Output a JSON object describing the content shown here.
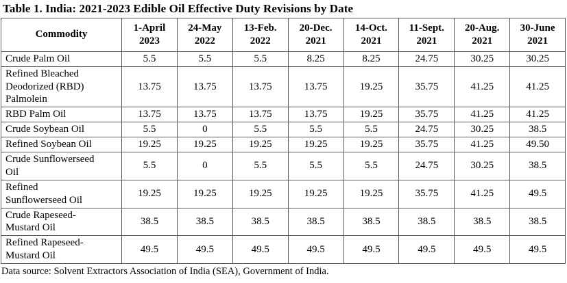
{
  "title": "Table 1. India: 2021-2023 Edible Oil Effective Duty Revisions by Date",
  "table": {
    "columns": [
      "Commodity",
      "1-April 2023",
      "24-May 2022",
      "13-Feb. 2022",
      "20-Dec. 2021",
      "14-Oct. 2021",
      "11-Sept. 2021",
      "20-Aug. 2021",
      "30-June 2021"
    ],
    "rows": [
      {
        "commodity": "Crude Palm Oil",
        "values": [
          "5.5",
          "5.5",
          "5.5",
          "8.25",
          "8.25",
          "24.75",
          "30.25",
          "30.25"
        ]
      },
      {
        "commodity": "Refined Bleached Deodorized (RBD) Palmolein",
        "values": [
          "13.75",
          "13.75",
          "13.75",
          "13.75",
          "19.25",
          "35.75",
          "41.25",
          "41.25"
        ]
      },
      {
        "commodity": "RBD Palm Oil",
        "values": [
          "13.75",
          "13.75",
          "13.75",
          "13.75",
          "19.25",
          "35.75",
          "41.25",
          "41.25"
        ]
      },
      {
        "commodity": "Crude Soybean Oil",
        "values": [
          "5.5",
          "0",
          "5.5",
          "5.5",
          "5.5",
          "24.75",
          "30.25",
          "38.5"
        ]
      },
      {
        "commodity": "Refined Soybean Oil",
        "values": [
          "19.25",
          "19.25",
          "19.25",
          "19.25",
          "19.25",
          "35.75",
          "41.25",
          "49.50"
        ]
      },
      {
        "commodity": "Crude Sunflowerseed Oil",
        "values": [
          "5.5",
          "0",
          "5.5",
          "5.5",
          "5.5",
          "24.75",
          "30.25",
          "38.5"
        ]
      },
      {
        "commodity": "Refined Sunflowerseed Oil",
        "values": [
          "19.25",
          "19.25",
          "19.25",
          "19.25",
          "19.25",
          "35.75",
          "41.25",
          "49.5"
        ]
      },
      {
        "commodity": "Crude Rapeseed-Mustard Oil",
        "values": [
          "38.5",
          "38.5",
          "38.5",
          "38.5",
          "38.5",
          "38.5",
          "38.5",
          "38.5"
        ]
      },
      {
        "commodity": "Refined Rapeseed-Mustard Oil",
        "values": [
          "49.5",
          "49.5",
          "49.5",
          "49.5",
          "49.5",
          "49.5",
          "49.5",
          "49.5"
        ]
      }
    ]
  },
  "footnote": "Data source: Solvent Extractors Association of India (SEA), Government of India.",
  "colors": {
    "text": "#000000",
    "border": "#595959",
    "background": "#ffffff"
  }
}
